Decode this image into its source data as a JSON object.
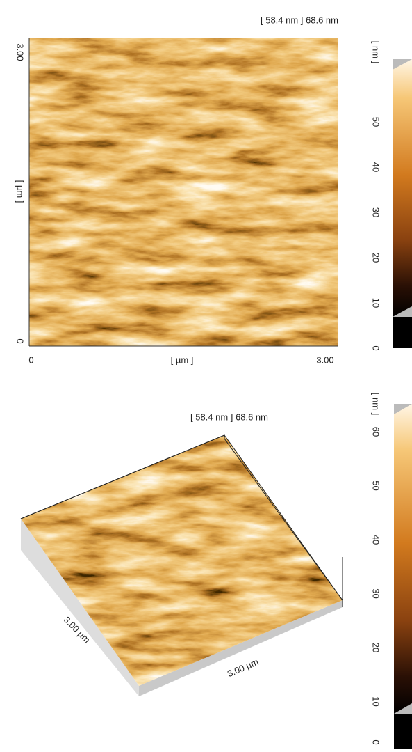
{
  "top_image": {
    "title": "[ 58.4 nm ] 68.6 nm",
    "y_axis": {
      "top": "3.00",
      "label": "[ µm ]",
      "bottom": "0"
    },
    "x_axis": {
      "left": "0",
      "label": "[ µm ]",
      "right": "3.00"
    },
    "colorbar": {
      "label": "[ nm ]",
      "ticks": [
        "50",
        "40",
        "30",
        "20",
        "10",
        "0"
      ]
    }
  },
  "bottom_image": {
    "title": "[ 58.4 nm ] 68.6 nm",
    "edge_labels": [
      "3.00 µm",
      "3.00 µm"
    ],
    "colorbar": {
      "label": "[ nm ]",
      "ticks": [
        "60",
        "50",
        "40",
        "30",
        "20",
        "10",
        "0"
      ]
    }
  }
}
